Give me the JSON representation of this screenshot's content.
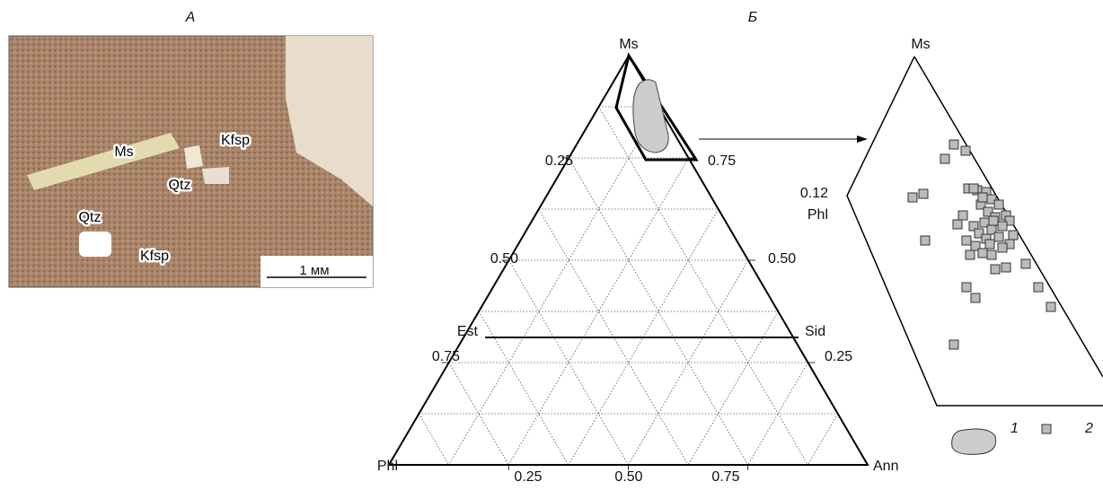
{
  "panel_a": {
    "label": "А",
    "minerals": [
      "Ms",
      "Qtz",
      "Kfsp",
      "Qtz",
      "Kfsp"
    ],
    "scale": "1 мм"
  },
  "panel_b": {
    "label": "Б",
    "vertices": [
      "Ms",
      "Phl",
      "Ann"
    ],
    "join_left": "Est",
    "join_right": "Sid",
    "left_ticks": [
      "0.25",
      "0.50",
      "0.75"
    ],
    "right_ticks": [
      "0.75",
      "0.50",
      "0.25"
    ],
    "bottom_ticks": [
      "0.25",
      "0.50",
      "0.75"
    ],
    "zoom": {
      "apex": "Ms",
      "tick": "0.12",
      "side": "Phl"
    },
    "legend": [
      "1",
      "2"
    ]
  }
}
